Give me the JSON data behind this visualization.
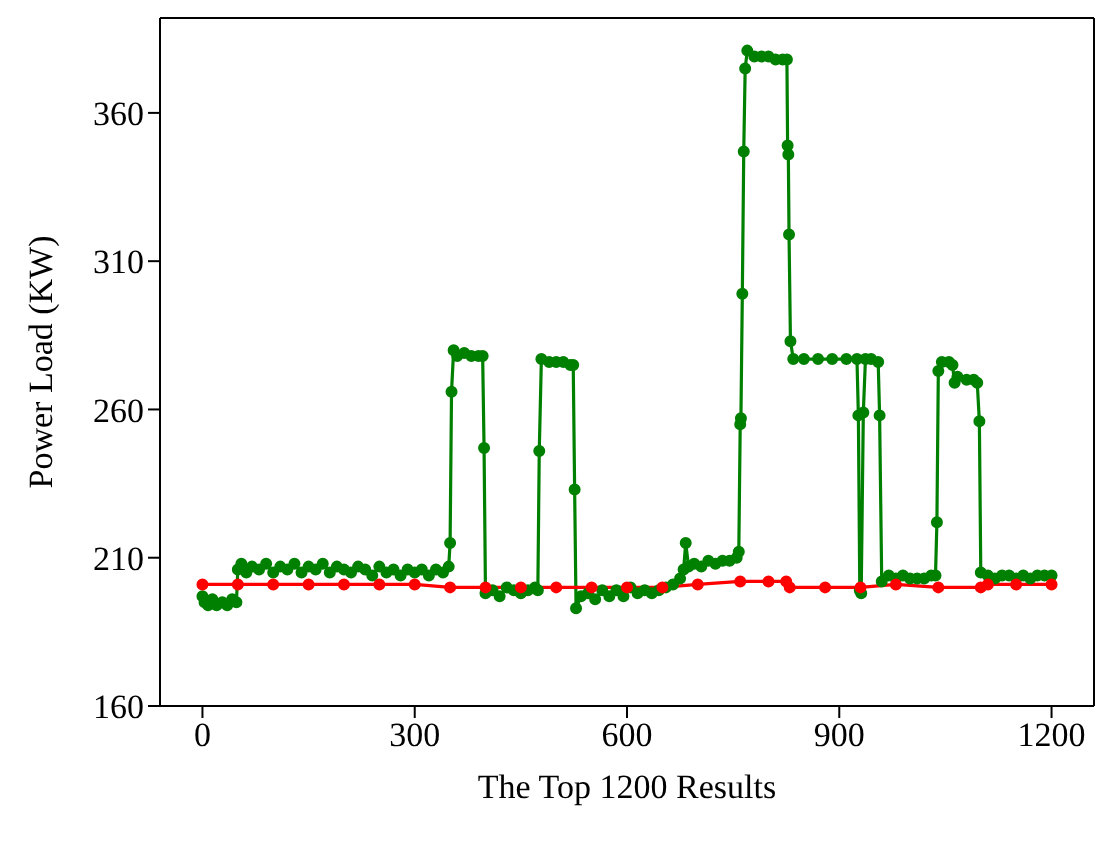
{
  "chart_data": {
    "type": "line",
    "xlabel": "The Top 1200 Results",
    "ylabel": "Power Load (KW)",
    "xlim": [
      -60,
      1260
    ],
    "ylim": [
      160,
      392
    ],
    "xticks": [
      0,
      300,
      600,
      900,
      1200
    ],
    "yticks": [
      160,
      210,
      260,
      310,
      360
    ],
    "marker": "circle",
    "line_style": "solid",
    "series": [
      {
        "color": "#008000",
        "x": [
          0,
          3,
          8,
          14,
          20,
          28,
          35,
          42,
          48,
          50,
          55,
          62,
          70,
          80,
          90,
          100,
          110,
          120,
          130,
          140,
          150,
          160,
          170,
          180,
          190,
          200,
          210,
          220,
          230,
          240,
          250,
          260,
          270,
          280,
          290,
          300,
          310,
          320,
          330,
          340,
          348,
          350,
          352,
          355,
          360,
          370,
          380,
          390,
          396,
          398,
          400,
          410,
          420,
          430,
          440,
          450,
          460,
          470,
          474,
          476,
          479,
          490,
          500,
          510,
          520,
          524,
          526,
          528,
          535,
          545,
          555,
          565,
          575,
          585,
          595,
          605,
          615,
          625,
          635,
          645,
          655,
          665,
          675,
          680,
          683,
          687,
          695,
          705,
          715,
          725,
          735,
          745,
          755,
          758,
          760,
          761,
          763,
          765,
          767,
          770,
          780,
          790,
          800,
          810,
          820,
          826,
          827,
          828,
          829,
          831,
          835,
          850,
          870,
          890,
          910,
          925,
          927,
          929,
          931,
          934,
          937,
          945,
          955,
          957,
          960,
          970,
          980,
          990,
          1000,
          1010,
          1020,
          1030,
          1036,
          1038,
          1040,
          1045,
          1055,
          1060,
          1063,
          1067,
          1080,
          1090,
          1095,
          1098,
          1100,
          1110,
          1120,
          1130,
          1140,
          1150,
          1160,
          1170,
          1180,
          1190,
          1200
        ],
        "values": [
          197,
          195,
          194,
          196,
          194,
          195,
          194,
          196,
          195,
          206,
          208,
          205,
          207,
          206,
          208,
          205,
          207,
          206,
          208,
          205,
          207,
          206,
          208,
          205,
          207,
          206,
          205,
          207,
          206,
          204,
          207,
          205,
          206,
          204,
          206,
          205,
          206,
          204,
          206,
          205,
          207,
          215,
          266,
          280,
          278,
          279,
          278,
          278,
          278,
          247,
          198,
          199,
          197,
          200,
          199,
          198,
          199,
          200,
          199,
          246,
          277,
          276,
          276,
          276,
          275,
          275,
          233,
          193,
          197,
          198,
          196,
          199,
          197,
          199,
          197,
          200,
          198,
          199,
          198,
          199,
          200,
          201,
          203,
          206,
          215,
          207,
          208,
          207,
          209,
          208,
          209,
          209,
          210,
          212,
          255,
          257,
          299,
          347,
          375,
          381,
          379,
          379,
          379,
          378,
          378,
          378,
          349,
          346,
          319,
          283,
          277,
          277,
          277,
          277,
          277,
          277,
          258,
          199,
          198,
          259,
          277,
          277,
          276,
          258,
          202,
          204,
          203,
          204,
          203,
          203,
          203,
          204,
          204,
          222,
          273,
          276,
          276,
          275,
          269,
          271,
          270,
          270,
          269,
          256,
          205,
          204,
          203,
          204,
          204,
          203,
          204,
          203,
          204,
          204,
          204
        ]
      },
      {
        "color": "#ff0000",
        "x": [
          0,
          50,
          100,
          150,
          200,
          250,
          300,
          350,
          400,
          450,
          500,
          550,
          600,
          650,
          700,
          760,
          800,
          825,
          830,
          880,
          930,
          980,
          1040,
          1100,
          1110,
          1150,
          1200
        ],
        "values": [
          201,
          201,
          201,
          201,
          201,
          201,
          201,
          200,
          200,
          200,
          200,
          200,
          200,
          200,
          201,
          202,
          202,
          202,
          200,
          200,
          200,
          201,
          200,
          200,
          201,
          201,
          201
        ]
      }
    ]
  }
}
